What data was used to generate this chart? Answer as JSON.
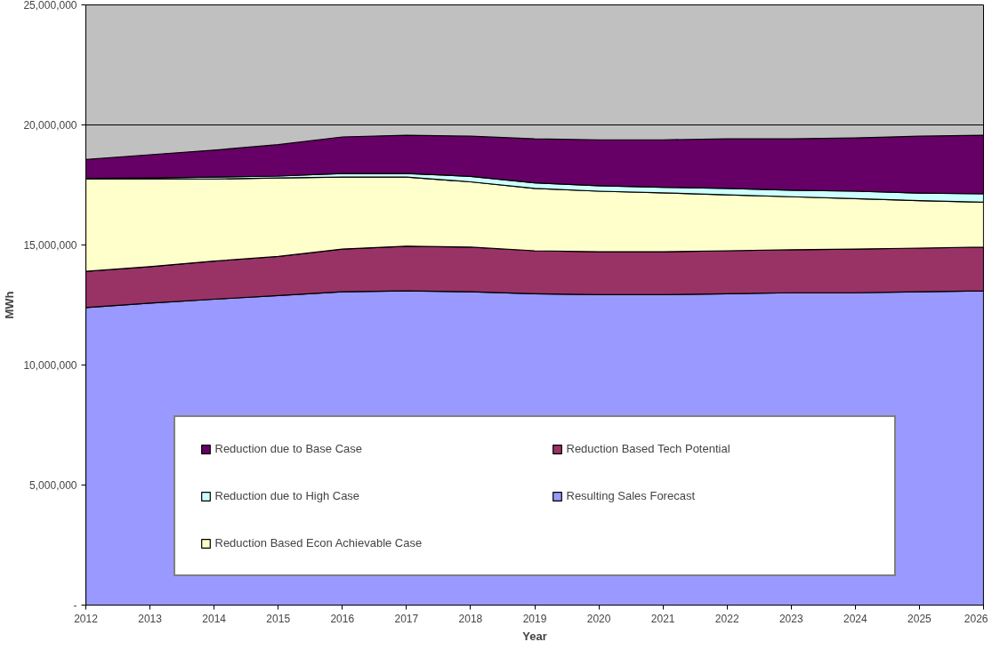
{
  "chart_data": {
    "type": "area",
    "stacked": true,
    "xlabel": "Year",
    "ylabel": "MWh",
    "x": [
      2012,
      2013,
      2014,
      2015,
      2016,
      2017,
      2018,
      2019,
      2020,
      2021,
      2022,
      2023,
      2024,
      2025,
      2026
    ],
    "xlim": [
      2012,
      2026
    ],
    "xticks": [
      2012,
      2013,
      2014,
      2015,
      2016,
      2017,
      2018,
      2019,
      2020,
      2021,
      2022,
      2023,
      2024,
      2025,
      2026
    ],
    "ylim": [
      0,
      25000000
    ],
    "yticks": [
      {
        "value": 0,
        "label": "-"
      },
      {
        "value": 5000000,
        "label": "5,000,000"
      },
      {
        "value": 10000000,
        "label": "10,000,000"
      },
      {
        "value": 15000000,
        "label": "15,000,000"
      },
      {
        "value": 20000000,
        "label": "20,000,000"
      },
      {
        "value": 25000000,
        "label": "25,000,000"
      }
    ],
    "grid": "y",
    "legend": "bottom",
    "series": [
      {
        "name": "Resulting Sales Forecast",
        "color": "#9999ff",
        "values": [
          12390000,
          12580000,
          12740000,
          12890000,
          13050000,
          13090000,
          13050000,
          12970000,
          12930000,
          12930000,
          12970000,
          13010000,
          13010000,
          13050000,
          13090000
        ]
      },
      {
        "name": "Reduction Based Tech Potential",
        "color": "#993366",
        "values": [
          1510000,
          1520000,
          1590000,
          1630000,
          1780000,
          1860000,
          1860000,
          1790000,
          1790000,
          1790000,
          1790000,
          1790000,
          1820000,
          1820000,
          1820000
        ]
      },
      {
        "name": "Reduction Based Econ Achievable Case",
        "color": "#ffffcc",
        "values": [
          3850000,
          3650000,
          3420000,
          3270000,
          3000000,
          2880000,
          2720000,
          2600000,
          2520000,
          2450000,
          2330000,
          2210000,
          2100000,
          1980000,
          1870000
        ]
      },
      {
        "name": "Reduction due to High Case",
        "color": "#ccffff",
        "values": [
          20000,
          40000,
          80000,
          80000,
          150000,
          150000,
          230000,
          230000,
          230000,
          230000,
          270000,
          270000,
          310000,
          310000,
          350000
        ]
      },
      {
        "name": "Reduction due to Base Case",
        "color": "#660066",
        "values": [
          790000,
          970000,
          1120000,
          1310000,
          1520000,
          1590000,
          1670000,
          1830000,
          1910000,
          1980000,
          2060000,
          2140000,
          2220000,
          2370000,
          2440000
        ]
      }
    ]
  }
}
